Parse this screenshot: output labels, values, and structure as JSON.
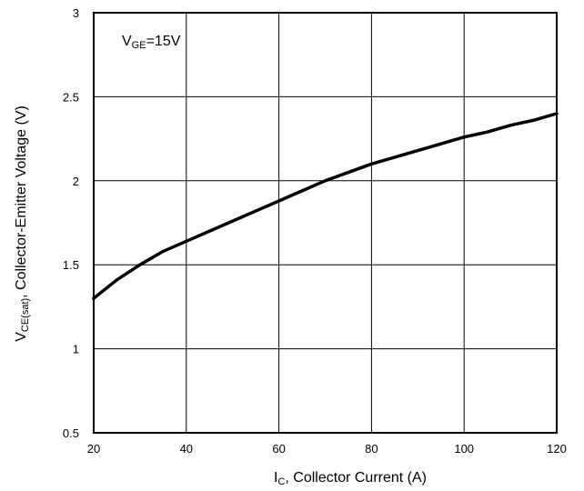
{
  "chart_data": {
    "type": "line",
    "x_ticks": [
      20,
      40,
      60,
      80,
      100,
      120
    ],
    "y_ticks": [
      0.5,
      1,
      1.5,
      2,
      2.5,
      3
    ],
    "xlim": [
      20,
      120
    ],
    "ylim": [
      0.5,
      3
    ],
    "grid": true,
    "xlabel": {
      "main": "I",
      "sub": "C",
      "rest": ", Collector Current (A)"
    },
    "ylabel": {
      "main": "V",
      "sub": "CE(sat)",
      "rest": ", Collector-Emitter Voltage (V)"
    },
    "annotation": {
      "main": "V",
      "sub": "GE",
      "rest": "=15V"
    },
    "series": [
      {
        "x": [
          20,
          25,
          30,
          35,
          40,
          45,
          50,
          55,
          60,
          65,
          70,
          75,
          80,
          85,
          90,
          95,
          100,
          105,
          110,
          115,
          120
        ],
        "y": [
          1.3,
          1.41,
          1.5,
          1.58,
          1.64,
          1.7,
          1.76,
          1.82,
          1.88,
          1.94,
          2.0,
          2.05,
          2.1,
          2.14,
          2.18,
          2.22,
          2.26,
          2.29,
          2.33,
          2.36,
          2.4
        ]
      }
    ]
  }
}
